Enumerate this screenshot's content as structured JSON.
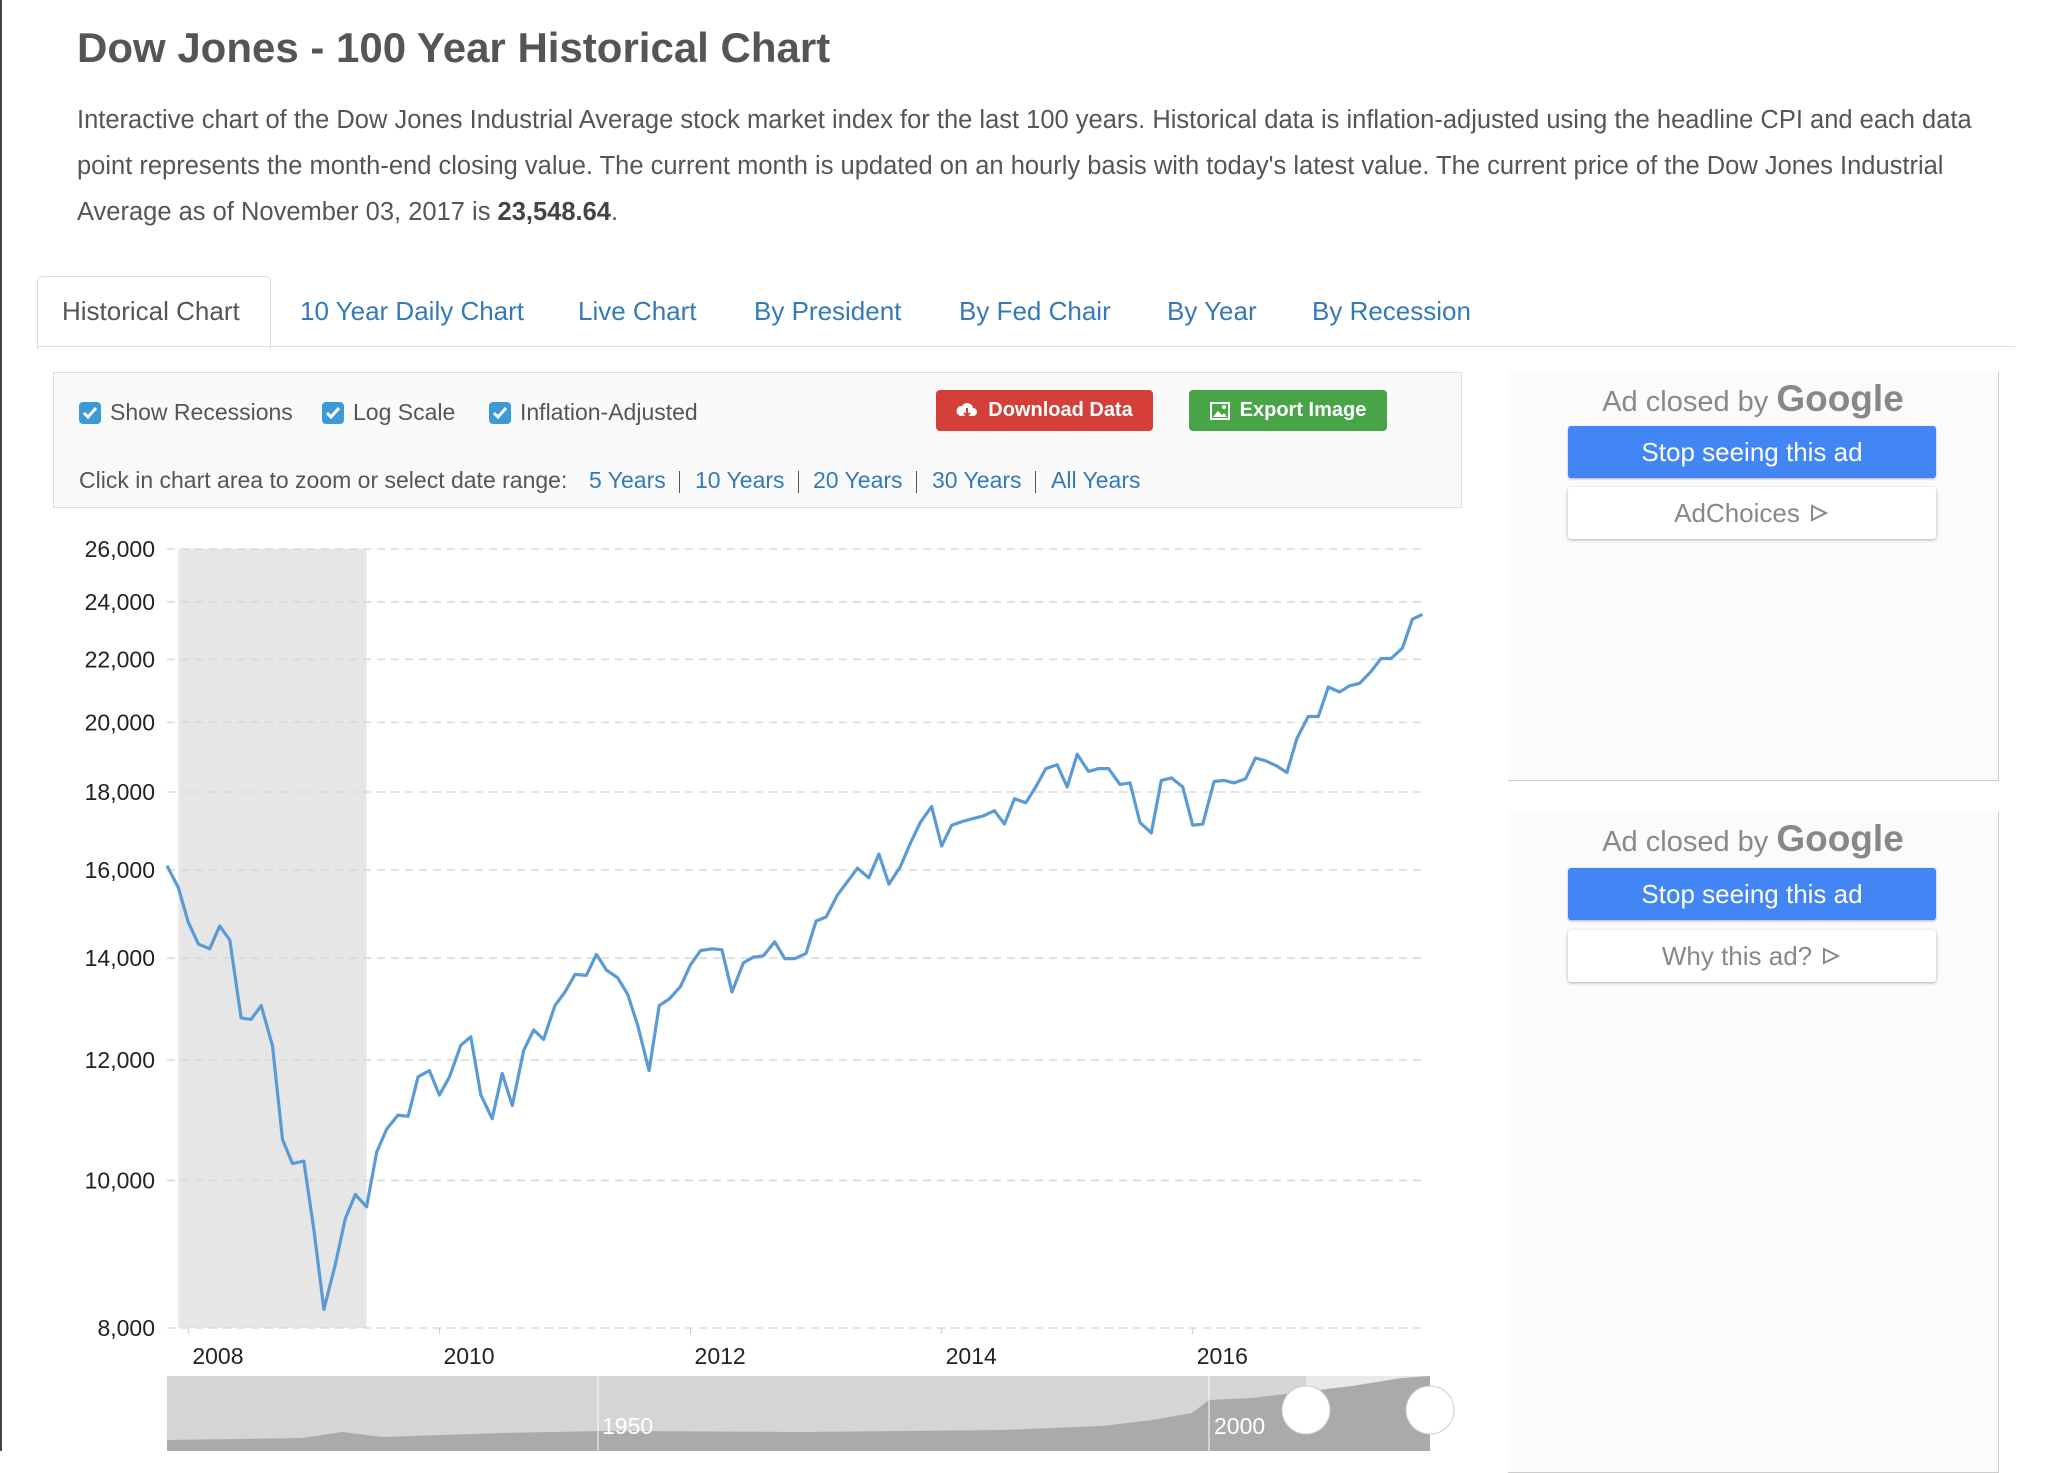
{
  "header": {
    "title": "Dow Jones - 100 Year Historical Chart",
    "description": "Interactive chart of the Dow Jones Industrial Average stock market index for the last 100 years. Historical data is inflation-adjusted using the headline CPI and each data point represents the month-end closing value. The current month is updated on an hourly basis with today's latest value. The current price of the Dow Jones Industrial Average as of November 03, 2017 is",
    "price": "23,548.64",
    "end": "."
  },
  "tabs": [
    "Historical Chart",
    "10 Year Daily Chart",
    "Live Chart",
    "By President",
    "By Fed Chair",
    "By Year",
    "By Recession"
  ],
  "controls": {
    "options": [
      {
        "label": "Show Recessions",
        "checked": true
      },
      {
        "label": "Log Scale",
        "checked": true
      },
      {
        "label": "Inflation-Adjusted",
        "checked": true
      }
    ],
    "download": "Download Data",
    "export": "Export Image",
    "range_prompt": "Click in chart area to zoom or select date range:",
    "ranges": [
      "5 Years",
      "10 Years",
      "20 Years",
      "30 Years",
      "All Years"
    ]
  },
  "chart_data": {
    "type": "line",
    "log": true,
    "grid": true,
    "x": [
      2007.83,
      2007.92,
      2008.0,
      2008.08,
      2008.17,
      2008.25,
      2008.33,
      2008.42,
      2008.5,
      2008.58,
      2008.67,
      2008.75,
      2008.83,
      2008.92,
      2009.0,
      2009.08,
      2009.17,
      2009.25,
      2009.33,
      2009.42,
      2009.5,
      2009.58,
      2009.67,
      2009.75,
      2009.83,
      2009.92,
      2010.0,
      2010.08,
      2010.17,
      2010.25,
      2010.33,
      2010.42,
      2010.5,
      2010.58,
      2010.67,
      2010.75,
      2010.83,
      2010.92,
      2011.0,
      2011.08,
      2011.17,
      2011.25,
      2011.33,
      2011.42,
      2011.5,
      2011.58,
      2011.67,
      2011.75,
      2011.83,
      2011.92,
      2012.0,
      2012.08,
      2012.17,
      2012.25,
      2012.33,
      2012.42,
      2012.5,
      2012.58,
      2012.67,
      2012.75,
      2012.83,
      2012.92,
      2013.0,
      2013.08,
      2013.17,
      2013.25,
      2013.33,
      2013.42,
      2013.5,
      2013.58,
      2013.67,
      2013.75,
      2013.83,
      2013.92,
      2014.0,
      2014.08,
      2014.17,
      2014.25,
      2014.33,
      2014.42,
      2014.5,
      2014.58,
      2014.67,
      2014.75,
      2014.83,
      2014.92,
      2015.0,
      2015.08,
      2015.17,
      2015.25,
      2015.33,
      2015.42,
      2015.5,
      2015.58,
      2015.67,
      2015.75,
      2015.83,
      2015.92,
      2016.0,
      2016.08,
      2016.17,
      2016.25,
      2016.33,
      2016.42,
      2016.5,
      2016.58,
      2016.67,
      2016.75,
      2016.83,
      2016.92,
      2017.0,
      2017.08,
      2017.17,
      2017.25,
      2017.33,
      2017.42,
      2017.5,
      2017.58,
      2017.67,
      2017.75,
      2017.83
    ],
    "series": [
      {
        "color": "#5b9bd5",
        "values": [
          16100,
          15580,
          14780,
          14300,
          14200,
          14700,
          14390,
          12790,
          12760,
          13030,
          12260,
          10640,
          10260,
          10300,
          9280,
          8230,
          8800,
          9440,
          9790,
          9610,
          10440,
          10810,
          11040,
          11020,
          11700,
          11810,
          11380,
          11700,
          12270,
          12430,
          11380,
          10980,
          11760,
          11200,
          12170,
          12560,
          12380,
          13030,
          13300,
          13660,
          13640,
          14080,
          13750,
          13590,
          13250,
          12640,
          11810,
          13030,
          13160,
          13410,
          13860,
          14160,
          14200,
          14180,
          13300,
          13900,
          14020,
          14050,
          14350,
          13990,
          13990,
          14100,
          14810,
          14900,
          15400,
          15720,
          16040,
          15810,
          16390,
          15660,
          16070,
          16650,
          17190,
          17610,
          16590,
          17120,
          17220,
          17290,
          17360,
          17500,
          17150,
          17820,
          17710,
          18140,
          18650,
          18760,
          18140,
          19060,
          18570,
          18650,
          18650,
          18210,
          18250,
          17190,
          16920,
          18320,
          18390,
          18140,
          17120,
          17150,
          18290,
          18320,
          18250,
          18360,
          18950,
          18870,
          18720,
          18540,
          19520,
          20180,
          20180,
          21100,
          20940,
          21140,
          21220,
          21600,
          22030,
          22030,
          22380,
          23380,
          23550
        ]
      }
    ],
    "recessions": [
      {
        "start": 2007.92,
        "end": 2009.42
      }
    ],
    "xlim": [
      2007.83,
      2017.85
    ],
    "xticks": [
      2008,
      2010,
      2012,
      2014,
      2016
    ],
    "ylim": [
      8000,
      26000
    ],
    "yticks": [
      {
        "value": 8000,
        "label": "8,000"
      },
      {
        "value": 10000,
        "label": "10,000"
      },
      {
        "value": 12000,
        "label": "12,000"
      },
      {
        "value": 14000,
        "label": "14,000"
      },
      {
        "value": 16000,
        "label": "16,000"
      },
      {
        "value": 18000,
        "label": "18,000"
      },
      {
        "value": 20000,
        "label": "20,000"
      },
      {
        "value": 22000,
        "label": "22,000"
      },
      {
        "value": 24000,
        "label": "24,000"
      },
      {
        "value": 26000,
        "label": "26,000"
      }
    ],
    "navigator": [
      "1950",
      "2000"
    ]
  },
  "ads": [
    {
      "closed": "Ad closed by",
      "brand": "Google",
      "stop": "Stop seeing this ad",
      "info": "AdChoices"
    },
    {
      "closed": "Ad closed by",
      "brand": "Google",
      "stop": "Stop seeing this ad",
      "info": "Why this ad?"
    }
  ]
}
